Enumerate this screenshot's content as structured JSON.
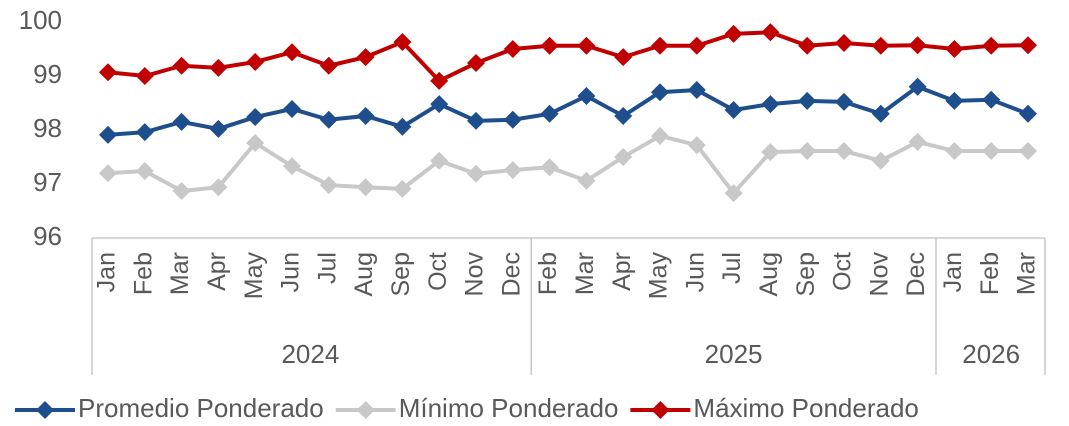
{
  "chart_data": {
    "type": "line",
    "groups": [
      {
        "label": "2024",
        "categories": [
          "Jan",
          "Feb",
          "Mar",
          "Apr",
          "May",
          "Jun",
          "Jul",
          "Aug",
          "Sep",
          "Oct",
          "Nov",
          "Dec"
        ]
      },
      {
        "label": "2025",
        "categories": [
          "Feb",
          "Mar",
          "Apr",
          "May",
          "Jun",
          "Jul",
          "Aug",
          "Sep",
          "Oct",
          "Nov",
          "Dec"
        ]
      },
      {
        "label": "2026",
        "categories": [
          "Jan",
          "Feb",
          "Mar"
        ]
      }
    ],
    "series": [
      {
        "name": "Promedio Ponderado",
        "color": "#1f4e8c",
        "values": [
          97.91,
          97.96,
          98.15,
          98.02,
          98.24,
          98.39,
          98.19,
          98.26,
          98.06,
          98.48,
          98.17,
          98.19,
          98.3,
          98.63,
          98.26,
          98.7,
          98.74,
          98.37,
          98.48,
          98.54,
          98.52,
          98.3,
          98.8,
          98.54,
          98.56,
          98.3
        ]
      },
      {
        "name": "Mínimo Ponderado",
        "color": "#c8c8c8",
        "values": [
          97.2,
          97.24,
          96.87,
          96.94,
          97.76,
          97.33,
          96.98,
          96.94,
          96.91,
          97.43,
          97.19,
          97.26,
          97.31,
          97.06,
          97.5,
          97.89,
          97.72,
          96.83,
          97.59,
          97.61,
          97.61,
          97.43,
          97.78,
          97.61,
          97.61,
          97.61
        ]
      },
      {
        "name": "Máximo Ponderado",
        "color": "#c00000",
        "values": [
          99.07,
          99.0,
          99.19,
          99.15,
          99.26,
          99.44,
          99.19,
          99.35,
          99.63,
          98.91,
          99.24,
          99.5,
          99.56,
          99.56,
          99.35,
          99.56,
          99.56,
          99.78,
          99.81,
          99.56,
          99.61,
          99.56,
          99.57,
          99.5,
          99.56,
          99.57
        ]
      }
    ],
    "ylim": [
      96,
      100
    ],
    "yticks": [
      96,
      97,
      98,
      99,
      100
    ],
    "grid": false,
    "legend": "bottom"
  }
}
